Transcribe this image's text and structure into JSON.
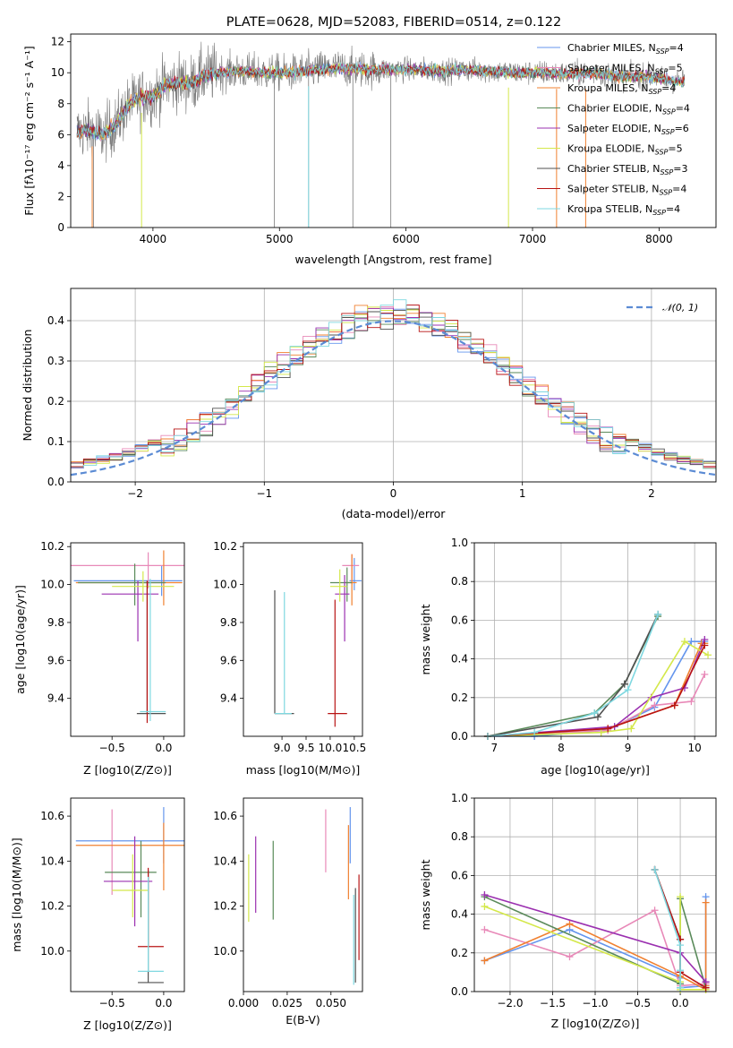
{
  "figure": {
    "title": "PLATE=0628, MJD=52083, FIBERID=0514, z=0.122"
  },
  "models": [
    {
      "name": "Chabrier MILES",
      "nssp": "4",
      "color": "#6495ed"
    },
    {
      "name": "Salpeter MILES",
      "nssp": "5",
      "color": "#e889b8"
    },
    {
      "name": "Kroupa MILES",
      "nssp": "4",
      "color": "#f08030"
    },
    {
      "name": "Chabrier ELODIE",
      "nssp": "4",
      "color": "#5a8a5a"
    },
    {
      "name": "Salpeter ELODIE",
      "nssp": "6",
      "color": "#9b30b0"
    },
    {
      "name": "Kroupa ELODIE",
      "nssp": "5",
      "color": "#d4e84a"
    },
    {
      "name": "Chabrier STELIB",
      "nssp": "3",
      "color": "#505050"
    },
    {
      "name": "Salpeter STELIB",
      "nssp": "4",
      "color": "#b81414"
    },
    {
      "name": "Kroupa STELIB",
      "nssp": "4",
      "color": "#7fd8e0"
    }
  ],
  "chart_data": [
    {
      "id": "spectrum",
      "type": "line",
      "xlabel": "wavelength [Angstrom, rest frame]",
      "ylabel": "Flux [f_λ 10^-17 erg cm^-2 s^-1 A^-1]",
      "xlim": [
        3350,
        8450
      ],
      "ylim": [
        0,
        12.5
      ],
      "xticks": [
        4000,
        5000,
        6000,
        7000,
        8000
      ],
      "yticks": [
        0,
        2,
        4,
        6,
        8,
        10,
        12
      ],
      "grid": false,
      "legend": "top-right",
      "data_x_range": [
        3400,
        8200
      ],
      "shape": [
        [
          3400,
          6.2
        ],
        [
          3500,
          6.3
        ],
        [
          3600,
          6.0
        ],
        [
          3700,
          6.6
        ],
        [
          3800,
          7.8
        ],
        [
          3900,
          8.4
        ],
        [
          4000,
          8.5
        ],
        [
          4100,
          9.2
        ],
        [
          4200,
          9.4
        ],
        [
          4300,
          9.3
        ],
        [
          4400,
          9.8
        ],
        [
          4500,
          10.0
        ],
        [
          4700,
          10.1
        ],
        [
          4900,
          10.0
        ],
        [
          5100,
          10.0
        ],
        [
          5300,
          10.2
        ],
        [
          5500,
          10.3
        ],
        [
          5700,
          10.2
        ],
        [
          5900,
          10.2
        ],
        [
          6100,
          10.2
        ],
        [
          6300,
          10.1
        ],
        [
          6500,
          10.2
        ],
        [
          6700,
          10.1
        ],
        [
          6900,
          10.0
        ],
        [
          7100,
          10.0
        ],
        [
          7300,
          9.9
        ],
        [
          7500,
          10.0
        ],
        [
          7700,
          9.7
        ],
        [
          7900,
          9.8
        ],
        [
          8100,
          9.5
        ],
        [
          8200,
          9.4
        ]
      ]
    },
    {
      "id": "residuals",
      "type": "histogram",
      "xlabel": "(data-model)/error",
      "ylabel": "Normed distribution",
      "xlim": [
        -2.5,
        2.5
      ],
      "ylim": [
        0,
        0.48
      ],
      "xticks": [
        -2,
        -1,
        0,
        1,
        2
      ],
      "yticks": [
        0.0,
        0.1,
        0.2,
        0.3,
        0.4
      ],
      "grid": true,
      "legend": "top-right",
      "reference_label": "𝒩(0, 1)",
      "reference_color": "#5b8bd4",
      "bin_width": 0.1
    },
    {
      "id": "age_vs_Z",
      "type": "errorbar",
      "xlabel": "Z [log10(Z/Z⊙)]",
      "ylabel": "age  [log10(age/yr)]",
      "xlim": [
        -0.9,
        0.2
      ],
      "ylim": [
        9.2,
        10.22
      ],
      "xticks": [
        -0.5,
        0.0
      ],
      "yticks": [
        9.4,
        9.6,
        9.8,
        10.0,
        10.2
      ],
      "points": [
        {
          "m": 0,
          "x": -0.02,
          "xerr": [
            0.85,
            0.2
          ],
          "y": 10.02,
          "yerr": [
            0.08,
            0.08
          ]
        },
        {
          "m": 1,
          "x": -0.15,
          "xerr": [
            0.75,
            0.35
          ],
          "y": 10.1,
          "yerr": [
            0.12,
            0.07
          ]
        },
        {
          "m": 2,
          "x": 0.0,
          "xerr": [
            0.85,
            0.18
          ],
          "y": 10.01,
          "yerr": [
            0.12,
            0.17
          ]
        },
        {
          "m": 3,
          "x": -0.28,
          "xerr": [
            0.55,
            0.3
          ],
          "y": 10.01,
          "yerr": [
            0.12,
            0.1
          ]
        },
        {
          "m": 4,
          "x": -0.25,
          "xerr": [
            0.35,
            0.2
          ],
          "y": 9.95,
          "yerr": [
            0.25,
            0.07
          ]
        },
        {
          "m": 5,
          "x": -0.2,
          "xerr": [
            0.3,
            0.3
          ],
          "y": 9.99,
          "yerr": [
            0.08,
            0.08
          ]
        },
        {
          "m": 6,
          "x": -0.16,
          "xerr": [
            0.1,
            0.18
          ],
          "y": 9.32,
          "yerr": [
            0.0,
            0.7
          ]
        },
        {
          "m": 7,
          "x": -0.16,
          "xerr": [
            0.0,
            0.0
          ],
          "y": 9.27,
          "yerr": [
            0.0,
            0.75
          ]
        },
        {
          "m": 8,
          "x": -0.13,
          "xerr": [
            0.1,
            0.15
          ],
          "y": 9.33,
          "yerr": [
            0.05,
            0.7
          ]
        }
      ]
    },
    {
      "id": "age_vs_mass",
      "type": "errorbar",
      "xlabel": "mass [log10(M/M⊙)]",
      "ylabel": "",
      "xlim": [
        8.2,
        10.67
      ],
      "ylim": [
        9.2,
        10.22
      ],
      "xticks": [
        9.0,
        9.5,
        10.0,
        10.5
      ],
      "yticks": [
        9.4,
        9.6,
        9.8,
        10.0,
        10.2
      ],
      "points": [
        {
          "m": 0,
          "x": 10.5,
          "xerr": [
            0.1,
            0.15
          ],
          "y": 10.02,
          "yerr": [
            0.05,
            0.12
          ]
        },
        {
          "m": 1,
          "x": 10.45,
          "xerr": [
            0.2,
            0.15
          ],
          "y": 10.1,
          "yerr": [
            0.1,
            0.06
          ]
        },
        {
          "m": 2,
          "x": 10.45,
          "xerr": [
            0.15,
            0.1
          ],
          "y": 10.01,
          "yerr": [
            0.12,
            0.15
          ]
        },
        {
          "m": 3,
          "x": 10.35,
          "xerr": [
            0.35,
            0.1
          ],
          "y": 10.01,
          "yerr": [
            0.1,
            0.08
          ]
        },
        {
          "m": 4,
          "x": 10.3,
          "xerr": [
            0.2,
            0.1
          ],
          "y": 9.95,
          "yerr": [
            0.25,
            0.1
          ]
        },
        {
          "m": 5,
          "x": 10.2,
          "xerr": [
            0.2,
            0.15
          ],
          "y": 9.99,
          "yerr": [
            0.08,
            0.09
          ]
        },
        {
          "m": 6,
          "x": 8.85,
          "xerr": [
            0.0,
            0.4
          ],
          "y": 9.32,
          "yerr": [
            0.0,
            0.65
          ]
        },
        {
          "m": 7,
          "x": 10.1,
          "xerr": [
            0.15,
            0.25
          ],
          "y": 9.32,
          "yerr": [
            0.07,
            0.6
          ]
        },
        {
          "m": 8,
          "x": 9.05,
          "xerr": [
            0.2,
            0.15
          ],
          "y": 9.32,
          "yerr": [
            0.0,
            0.64
          ]
        }
      ]
    },
    {
      "id": "weight_vs_age",
      "type": "line",
      "xlabel": "age  [log10(age/yr)]",
      "ylabel": "mass weight",
      "xlim": [
        6.7,
        10.32
      ],
      "ylim": [
        0,
        1.0
      ],
      "xticks": [
        7,
        8,
        9,
        10
      ],
      "yticks": [
        0.0,
        0.2,
        0.4,
        0.6,
        0.8,
        1.0
      ],
      "grid": true,
      "series": [
        {
          "m": 0,
          "x": [
            6.9,
            7.6,
            8.6,
            8.8,
            9.4,
            9.95,
            10.15
          ],
          "y": [
            0.0,
            0.0,
            0.03,
            0.05,
            0.15,
            0.49,
            0.49
          ]
        },
        {
          "m": 1,
          "x": [
            6.9,
            8.7,
            9.4,
            9.95,
            10.15
          ],
          "y": [
            0.0,
            0.03,
            0.16,
            0.18,
            0.32
          ]
        },
        {
          "m": 2,
          "x": [
            6.9,
            8.7,
            9.7,
            10.1,
            10.15
          ],
          "y": [
            0.0,
            0.04,
            0.16,
            0.48,
            0.48
          ]
        },
        {
          "m": 3,
          "x": [
            6.9,
            8.5,
            8.95,
            9.45
          ],
          "y": [
            0.0,
            0.12,
            0.27,
            0.62
          ]
        },
        {
          "m": 4,
          "x": [
            6.9,
            8.8,
            9.35,
            9.85,
            10.15
          ],
          "y": [
            0.0,
            0.05,
            0.2,
            0.25,
            0.5
          ]
        },
        {
          "m": 5,
          "x": [
            6.9,
            8.6,
            9.05,
            9.85,
            10.2
          ],
          "y": [
            0.0,
            0.02,
            0.04,
            0.49,
            0.42
          ]
        },
        {
          "m": 6,
          "x": [
            6.9,
            8.55,
            8.95,
            9.45
          ],
          "y": [
            0.0,
            0.1,
            0.27,
            0.63
          ]
        },
        {
          "m": 7,
          "x": [
            6.9,
            8.7,
            9.7,
            10.15
          ],
          "y": [
            0.0,
            0.04,
            0.16,
            0.47
          ]
        },
        {
          "m": 8,
          "x": [
            6.9,
            7.6,
            8.5,
            9.0,
            9.45
          ],
          "y": [
            0.0,
            0.02,
            0.12,
            0.24,
            0.63
          ]
        }
      ]
    },
    {
      "id": "mass_vs_Z",
      "type": "errorbar",
      "xlabel": "Z [log10(Z/Z⊙)]",
      "ylabel": "mass [log10(M/M⊙)]",
      "xlim": [
        -0.9,
        0.2
      ],
      "ylim": [
        9.82,
        10.68
      ],
      "xticks": [
        -0.5,
        0.0
      ],
      "yticks": [
        10.0,
        10.2,
        10.4,
        10.6
      ],
      "points": [
        {
          "m": 0,
          "x": 0.0,
          "xerr": [
            0.85,
            0.2
          ],
          "y": 10.49,
          "yerr": [
            0.1,
            0.15
          ]
        },
        {
          "m": 1,
          "x": -0.5,
          "xerr": [
            0.0,
            0.0
          ],
          "y": 10.4,
          "yerr": [
            0.15,
            0.23
          ]
        },
        {
          "m": 2,
          "x": 0.0,
          "xerr": [
            0.85,
            0.2
          ],
          "y": 10.47,
          "yerr": [
            0.2,
            0.1
          ]
        },
        {
          "m": 3,
          "x": -0.22,
          "xerr": [
            0.35,
            0.15
          ],
          "y": 10.35,
          "yerr": [
            0.2,
            0.14
          ]
        },
        {
          "m": 4,
          "x": -0.28,
          "xerr": [
            0.3,
            0.17
          ],
          "y": 10.31,
          "yerr": [
            0.2,
            0.2
          ]
        },
        {
          "m": 5,
          "x": -0.3,
          "xerr": [
            0.2,
            0.15
          ],
          "y": 10.27,
          "yerr": [
            0.12,
            0.16
          ]
        },
        {
          "m": 6,
          "x": -0.15,
          "xerr": [
            0.1,
            0.15
          ],
          "y": 9.86,
          "yerr": [
            0.0,
            0.5
          ]
        },
        {
          "m": 7,
          "x": -0.15,
          "xerr": [
            0.1,
            0.15
          ],
          "y": 10.02,
          "yerr": [
            0.0,
            0.35
          ]
        },
        {
          "m": 8,
          "x": -0.15,
          "xerr": [
            0.1,
            0.15
          ],
          "y": 9.91,
          "yerr": [
            0.0,
            0.42
          ]
        }
      ]
    },
    {
      "id": "mass_vs_ebv",
      "type": "errorbar",
      "xlabel": "E(B-V)",
      "ylabel": "",
      "xlim": [
        0.0,
        0.068
      ],
      "ylim": [
        9.82,
        10.68
      ],
      "xticks": [
        0.0,
        0.025,
        0.05
      ],
      "xticklabels": [
        "0.000",
        "0.025",
        "0.050"
      ],
      "yticks": [
        10.0,
        10.2,
        10.4,
        10.6
      ],
      "points": [
        {
          "m": 0,
          "x": 0.061,
          "xerr": [
            0,
            0
          ],
          "y": 10.49,
          "yerr": [
            0.1,
            0.15
          ]
        },
        {
          "m": 1,
          "x": 0.047,
          "xerr": [
            0,
            0
          ],
          "y": 10.49,
          "yerr": [
            0.14,
            0.14
          ]
        },
        {
          "m": 2,
          "x": 0.06,
          "xerr": [
            0,
            0
          ],
          "y": 10.4,
          "yerr": [
            0.17,
            0.16
          ]
        },
        {
          "m": 3,
          "x": 0.017,
          "xerr": [
            0,
            0
          ],
          "y": 10.31,
          "yerr": [
            0.17,
            0.18
          ]
        },
        {
          "m": 4,
          "x": 0.007,
          "xerr": [
            0,
            0
          ],
          "y": 10.34,
          "yerr": [
            0.17,
            0.17
          ]
        },
        {
          "m": 5,
          "x": 0.003,
          "xerr": [
            0,
            0
          ],
          "y": 10.28,
          "yerr": [
            0.15,
            0.15
          ]
        },
        {
          "m": 6,
          "x": 0.064,
          "xerr": [
            0,
            0
          ],
          "y": 10.07,
          "yerr": [
            0.21,
            0.21
          ]
        },
        {
          "m": 7,
          "x": 0.066,
          "xerr": [
            0,
            0
          ],
          "y": 10.15,
          "yerr": [
            0.19,
            0.19
          ]
        },
        {
          "m": 8,
          "x": 0.063,
          "xerr": [
            0,
            0
          ],
          "y": 10.05,
          "yerr": [
            0.2,
            0.2
          ]
        }
      ]
    },
    {
      "id": "weight_vs_Z",
      "type": "line",
      "xlabel": "Z [log10(Z/Z⊙)]",
      "ylabel": "mass weight",
      "xlim": [
        -2.42,
        0.42
      ],
      "ylim": [
        0,
        1.0
      ],
      "xticks": [
        -2.0,
        -1.5,
        -1.0,
        -0.5,
        0.0
      ],
      "yticks": [
        0.0,
        0.2,
        0.4,
        0.6,
        0.8,
        1.0
      ],
      "grid": true,
      "series": [
        {
          "m": 0,
          "x": [
            -2.3,
            -1.3,
            0.0,
            0.0,
            0.3,
            0.3
          ],
          "y": [
            0.16,
            0.32,
            0.07,
            0.02,
            0.03,
            0.49
          ]
        },
        {
          "m": 1,
          "x": [
            -2.3,
            -1.3,
            -0.3,
            0.0,
            0.3,
            0.3
          ],
          "y": [
            0.32,
            0.18,
            0.42,
            0.03,
            0.04,
            0.04
          ]
        },
        {
          "m": 2,
          "x": [
            -2.3,
            -1.3,
            0.0,
            0.3,
            0.3,
            0.3
          ],
          "y": [
            0.16,
            0.35,
            0.08,
            0.01,
            0.03,
            0.46
          ]
        },
        {
          "m": 3,
          "x": [
            -2.3,
            0.0,
            0.0,
            0.3
          ],
          "y": [
            0.49,
            0.04,
            0.48,
            0.02
          ]
        },
        {
          "m": 4,
          "x": [
            -2.3,
            0.0,
            0.3,
            0.3
          ],
          "y": [
            0.5,
            0.2,
            0.05,
            0.05
          ]
        },
        {
          "m": 5,
          "x": [
            -2.3,
            0.0,
            0.0,
            0.0,
            0.3
          ],
          "y": [
            0.44,
            0.05,
            0.49,
            0.01,
            0.01
          ]
        },
        {
          "m": 6,
          "x": [
            -0.3,
            0.0,
            0.0
          ],
          "y": [
            0.63,
            0.27,
            0.1
          ]
        },
        {
          "m": 7,
          "x": [
            -0.3,
            0.0,
            0.0,
            0.3
          ],
          "y": [
            0.63,
            0.27,
            0.1,
            0.02
          ]
        },
        {
          "m": 8,
          "x": [
            -0.3,
            0.0,
            0.0,
            0.0
          ],
          "y": [
            0.63,
            0.24,
            0.11,
            0.02
          ]
        }
      ]
    }
  ]
}
